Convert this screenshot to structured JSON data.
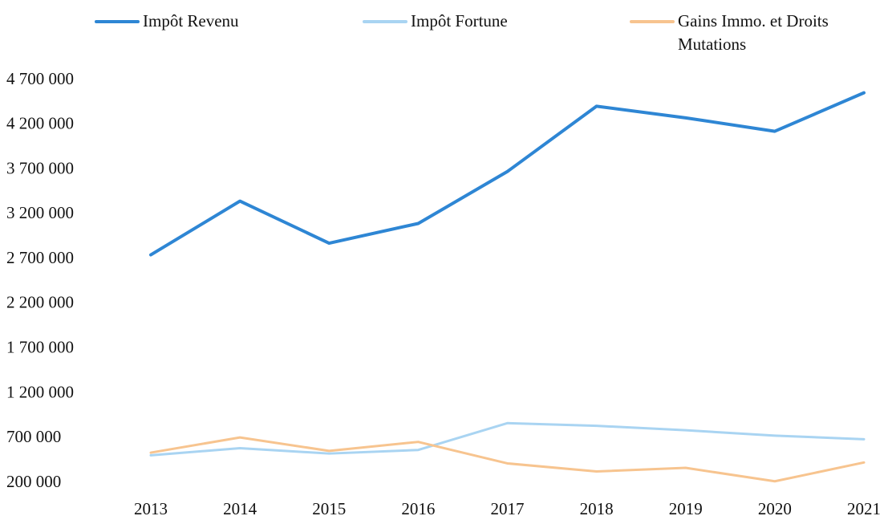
{
  "chart_data": {
    "type": "line",
    "categories": [
      "2013",
      "2014",
      "2015",
      "2016",
      "2017",
      "2018",
      "2019",
      "2020",
      "2021"
    ],
    "series": [
      {
        "name": "Impôt Revenu",
        "color": "#2e86d4",
        "values": [
          2750000,
          3350000,
          2880000,
          3100000,
          3680000,
          4410000,
          4280000,
          4130000,
          4560000
        ]
      },
      {
        "name": "Impôt Fortune",
        "color": "#a9d4f2",
        "values": [
          510000,
          590000,
          530000,
          570000,
          870000,
          840000,
          790000,
          730000,
          690000
        ]
      },
      {
        "name": "Gains Immo. et Droits Mutations",
        "color": "#f7c48f",
        "values": [
          540000,
          710000,
          560000,
          660000,
          420000,
          330000,
          370000,
          220000,
          430000
        ]
      }
    ],
    "ylim": [
      200000,
      4700000
    ],
    "yticks": [
      {
        "value": 200000,
        "label": "200 000"
      },
      {
        "value": 700000,
        "label": "700 000"
      },
      {
        "value": 1200000,
        "label": "1 200 000"
      },
      {
        "value": 1700000,
        "label": "1 700 000"
      },
      {
        "value": 2200000,
        "label": "2 200 000"
      },
      {
        "value": 2700000,
        "label": "2 700 000"
      },
      {
        "value": 3200000,
        "label": "3 200 000"
      },
      {
        "value": 3700000,
        "label": "3 700 000"
      },
      {
        "value": 4200000,
        "label": "4 200 000"
      },
      {
        "value": 4700000,
        "label": "4 700 000"
      }
    ],
    "grid": false,
    "legend": "top"
  }
}
